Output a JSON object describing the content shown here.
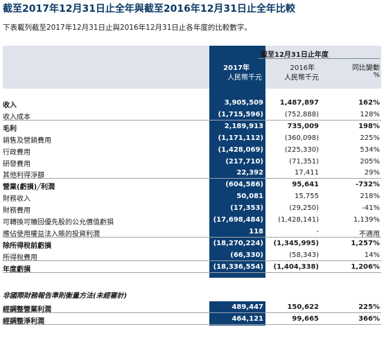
{
  "title": "截至2017年12月31日止全年與截至2016年12月31日止全年比較",
  "subtitle": "下表載列截至2017年12月31日止與2016年12月31日止各年度的比較數字。",
  "header": {
    "period": "截至12月31日止年度",
    "col1_year": "2017年",
    "col1_unit": "人民幣千元",
    "col2_year": "2016年",
    "col2_unit": "人民幣千元",
    "col3_title": "同比變動",
    "col3_unit": "%"
  },
  "rows": [
    {
      "label": "收入",
      "v2017": "3,905,509",
      "v2016": "1,487,897",
      "change": "162%"
    },
    {
      "label": "收入成本",
      "v2017": "(1,715,596)",
      "v2016": "(752,888)",
      "change": "128%"
    },
    {
      "label": "毛利",
      "v2017": "2,189,913",
      "v2016": "735,009",
      "change": "198%"
    },
    {
      "label": "銷售及營銷費用",
      "v2017": "(1,171,112)",
      "v2016": "(360,098)",
      "change": "225%"
    },
    {
      "label": "行政費用",
      "v2017": "(1,428,069)",
      "v2016": "(225,330)",
      "change": "534%"
    },
    {
      "label": "研發費用",
      "v2017": "(217,710)",
      "v2016": "(71,351)",
      "change": "205%"
    },
    {
      "label": "其他利得淨額",
      "v2017": "22,392",
      "v2016": "17,411",
      "change": "29%"
    },
    {
      "label": "營業(虧損)╱利潤",
      "v2017": "(604,586)",
      "v2016": "95,641",
      "change": "-732%"
    },
    {
      "label": "財務收入",
      "v2017": "50,081",
      "v2016": "15,755",
      "change": "218%"
    },
    {
      "label": "財務費用",
      "v2017": "(17,353)",
      "v2016": "(29,250)",
      "change": "-41%"
    },
    {
      "label": "可轉換可贖回優先股的公允價值虧損",
      "v2017": "(17,698,484)",
      "v2016": "(1,428,141)",
      "change": "1,139%"
    },
    {
      "label": "應佔使用權益法入賬的投資利潤",
      "v2017": "118",
      "v2016": "-",
      "change": "不適用"
    },
    {
      "label": "除所得稅前虧損",
      "v2017": "(18,270,224)",
      "v2016": "(1,345,995)",
      "change": "1,257%"
    },
    {
      "label": "所得稅費用",
      "v2017": "(66,330)",
      "v2016": "(58,343)",
      "change": "14%"
    },
    {
      "label": "年度虧損",
      "v2017": "(18,336,554)",
      "v2016": "(1,404,338)",
      "change": "1,206%"
    }
  ],
  "non_ifrs": {
    "section_title": "非國際財務報告準則衡量方法(未經審計)",
    "rows": [
      {
        "label": "經調整營業利潤",
        "v2017": "489,447",
        "v2016": "150,622",
        "change": "225%"
      },
      {
        "label": "經調整淨利潤",
        "v2017": "464,121",
        "v2016": "99,665",
        "change": "366%"
      }
    ]
  },
  "colors": {
    "title": "#0b3a66",
    "highlight_column": "#0d3f73",
    "header_band": "#dfe4ec"
  }
}
